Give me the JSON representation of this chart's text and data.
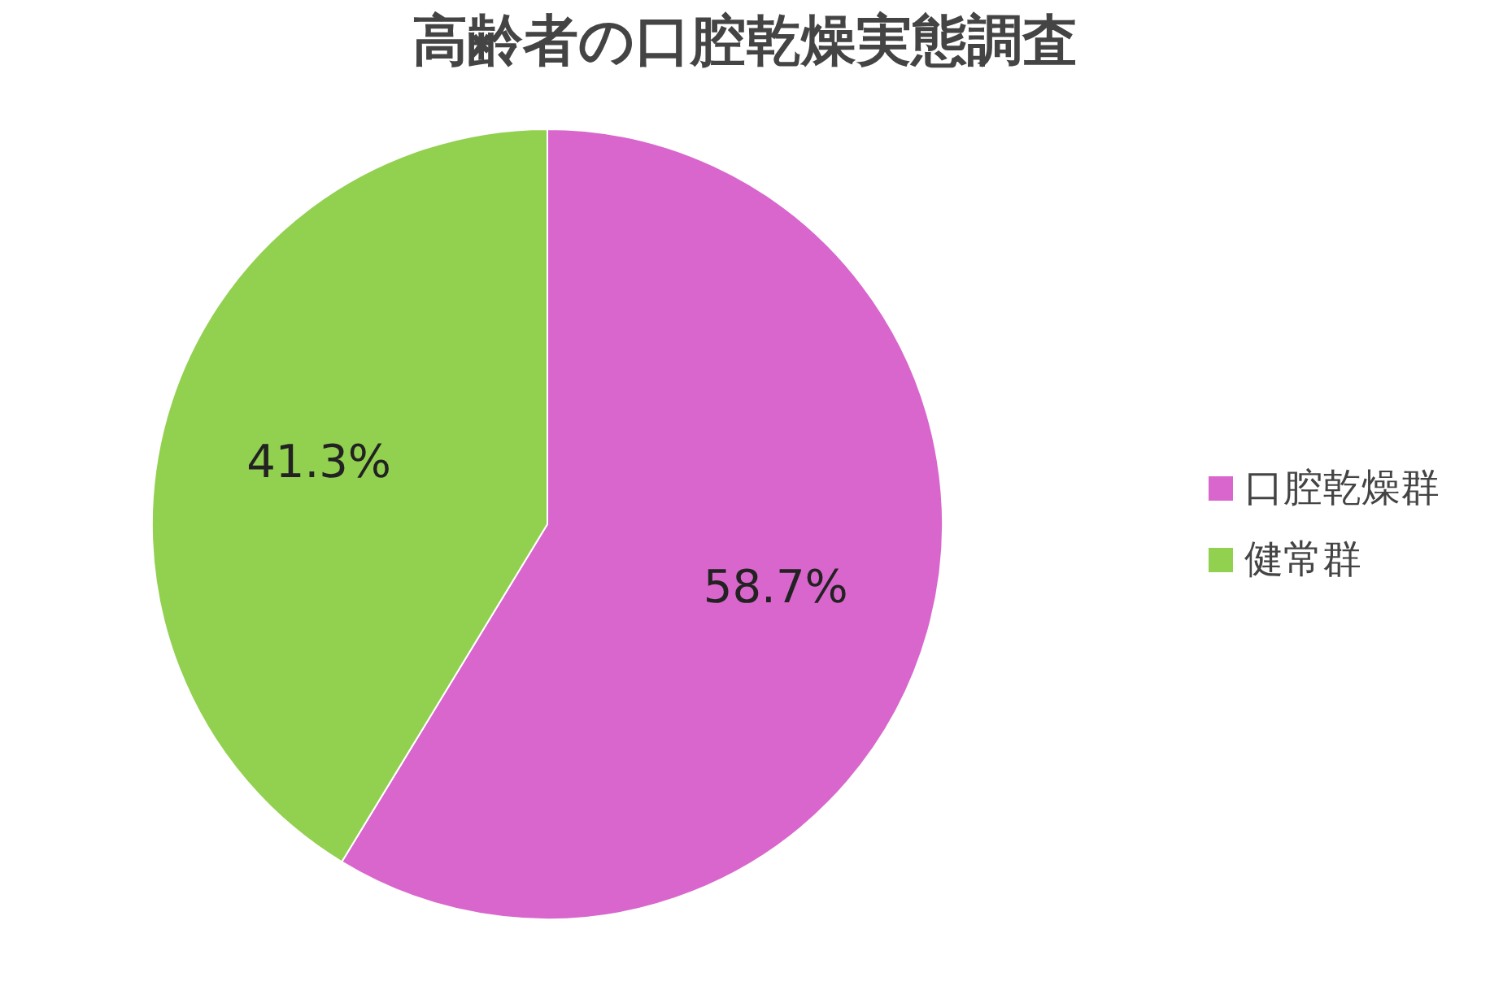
{
  "chart_data": {
    "type": "pie",
    "title": "高齢者の口腔乾燥実態調査",
    "categories": [
      "口腔乾燥群",
      "健常群"
    ],
    "values": [
      58.7,
      41.3
    ],
    "colors": [
      "#d966cc",
      "#92d050"
    ],
    "value_labels": [
      "58.7%",
      "41.3%"
    ],
    "legend": "right"
  }
}
